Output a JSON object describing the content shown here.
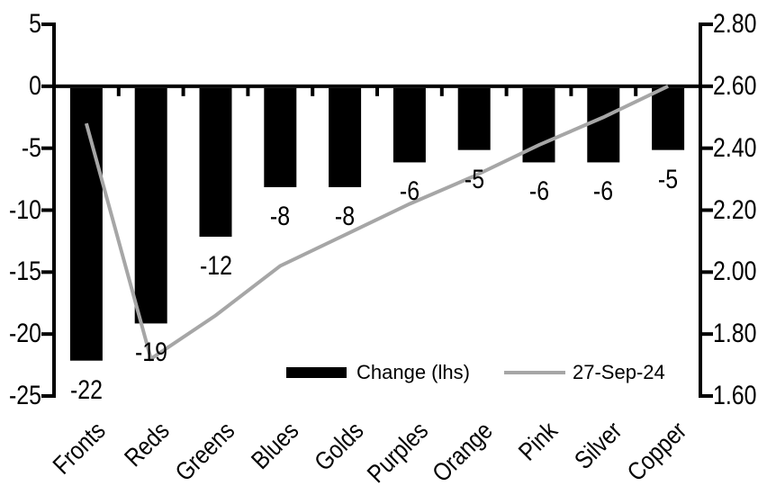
{
  "colors": {
    "bar": "#000000",
    "line": "#a6a6a6",
    "axis": "#000000",
    "text": "#000000",
    "background": "#ffffff"
  },
  "chart_data": {
    "type": "bar+line combo (dual axis)",
    "title": "",
    "categories": [
      "Fronts",
      "Reds",
      "Greens",
      "Blues",
      "Golds",
      "Purples",
      "Orange",
      "Pink",
      "Silver",
      "Copper"
    ],
    "series": [
      {
        "name": "Change (lhs)",
        "type": "bar",
        "axis": "left",
        "color": "#000000",
        "values": [
          -22,
          -19,
          -12,
          -8,
          -8,
          -6,
          -5,
          -6,
          -6,
          -5
        ],
        "data_labels": [
          "-22",
          "-19",
          "-12",
          "-8",
          "-8",
          "-6",
          "-5",
          "-6",
          "-6",
          "-5"
        ]
      },
      {
        "name": "27-Sep-24",
        "type": "line",
        "axis": "right",
        "color": "#a6a6a6",
        "values": [
          2.48,
          1.72,
          1.86,
          2.02,
          2.12,
          2.22,
          2.31,
          2.41,
          2.5,
          2.6
        ]
      }
    ],
    "left_axis": {
      "min": -25,
      "max": 5,
      "step": 5,
      "ticks": [
        "5",
        "0",
        "-5",
        "-10",
        "-15",
        "-20",
        "-25"
      ]
    },
    "right_axis": {
      "min": 1.6,
      "max": 2.8,
      "step": 0.2,
      "ticks": [
        "2.80",
        "2.60",
        "2.40",
        "2.20",
        "2.00",
        "1.80",
        "1.60"
      ]
    },
    "grid": "off",
    "legend_position": "bottom inside plot",
    "category_label_rotation_deg": 45
  }
}
